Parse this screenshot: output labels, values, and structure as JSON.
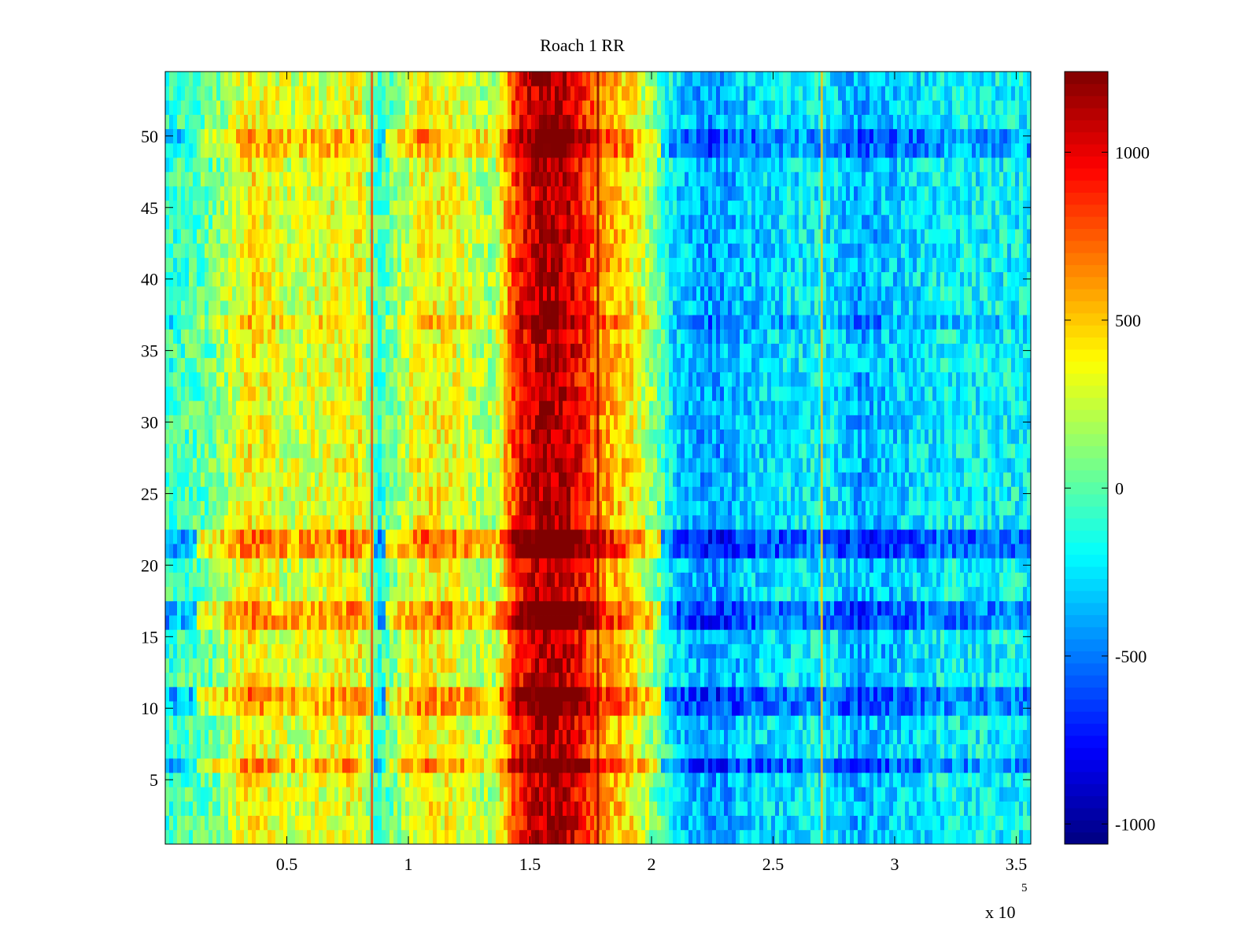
{
  "chart_data": {
    "type": "heatmap",
    "title": "Roach 1 RR",
    "xlabel": "",
    "ylabel": "",
    "x_multiplier": "x 10",
    "x_multiplier_exp": "5",
    "xlim": [
      0,
      356000
    ],
    "ylim": [
      0.5,
      54.5
    ],
    "rows": 54,
    "xticks": [
      {
        "value": 50000,
        "label": "0.5"
      },
      {
        "value": 100000,
        "label": "1"
      },
      {
        "value": 150000,
        "label": "1.5"
      },
      {
        "value": 200000,
        "label": "2"
      },
      {
        "value": 250000,
        "label": "2.5"
      },
      {
        "value": 300000,
        "label": "3"
      },
      {
        "value": 350000,
        "label": "3.5"
      }
    ],
    "yticks": [
      {
        "value": 5,
        "label": "5"
      },
      {
        "value": 10,
        "label": "10"
      },
      {
        "value": 15,
        "label": "15"
      },
      {
        "value": 20,
        "label": "20"
      },
      {
        "value": 25,
        "label": "25"
      },
      {
        "value": 30,
        "label": "30"
      },
      {
        "value": 35,
        "label": "35"
      },
      {
        "value": 40,
        "label": "40"
      },
      {
        "value": 45,
        "label": "45"
      },
      {
        "value": 50,
        "label": "50"
      }
    ],
    "colorbar": {
      "colormap": "jet",
      "clim": [
        -1060,
        1240
      ],
      "ticks": [
        {
          "value": 1000,
          "label": "1000"
        },
        {
          "value": 500,
          "label": "500"
        },
        {
          "value": 0,
          "label": "0"
        },
        {
          "value": -500,
          "label": "-500"
        },
        {
          "value": -1000,
          "label": "-1000"
        }
      ]
    },
    "column_profile": {
      "x": [
        0,
        20000,
        35000,
        50000,
        65000,
        80000,
        85000,
        88000,
        95000,
        105000,
        120000,
        135000,
        145000,
        155000,
        165000,
        172000,
        180000,
        190000,
        200000,
        210000,
        225000,
        240000,
        255000,
        270000,
        285000,
        300000,
        320000,
        356000
      ],
      "value": [
        -100,
        50,
        420,
        250,
        300,
        380,
        40,
        -80,
        120,
        420,
        320,
        150,
        900,
        1150,
        1100,
        900,
        600,
        450,
        150,
        -280,
        -420,
        -300,
        -250,
        -180,
        -380,
        -300,
        -200,
        -200
      ]
    },
    "highlight_rows": [
      {
        "row": 6,
        "value": 600
      },
      {
        "row": 10,
        "value": 550
      },
      {
        "row": 11,
        "value": 650
      },
      {
        "row": 16,
        "value": 650
      },
      {
        "row": 17,
        "value": 600
      },
      {
        "row": 21,
        "value": 700
      },
      {
        "row": 22,
        "value": 750
      },
      {
        "row": 37,
        "value": 300
      },
      {
        "row": 49,
        "value": 450
      },
      {
        "row": 50,
        "value": 500
      }
    ],
    "vertical_lines": [
      {
        "x": 85000,
        "value": 800
      },
      {
        "x": 178000,
        "value": 1200
      },
      {
        "x": 270000,
        "value": 500
      }
    ]
  }
}
